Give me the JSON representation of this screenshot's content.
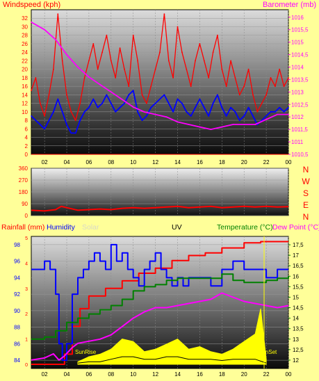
{
  "colors": {
    "background": "#ffff99",
    "wind_speed": "#ff0000",
    "wind_avg": "#0000ff",
    "barometer": "#ff00ff",
    "wind_dir": "#ff0000",
    "rain": "#ff0000",
    "humidity": "#0000ff",
    "solar": "#ffff00",
    "uv": "#000000",
    "temperature": "#008000",
    "dew_point": "#ff00ff",
    "sunset": "#ffff00"
  },
  "chart_data": [
    {
      "type": "line",
      "title": "",
      "xlabel": "",
      "left_label": "Windspeed (kph)",
      "right_label": "Barometer (mb)",
      "subtitle": "",
      "x_ticks": [
        "02",
        "04",
        "06",
        "08",
        "10",
        "12",
        "14",
        "16",
        "18",
        "20",
        "22",
        "00"
      ],
      "x_range": [
        0.8,
        24.0
      ],
      "ylim_left": [
        0,
        34
      ],
      "ylim_right": [
        1010.5,
        1016.3
      ],
      "y_ticks_left": [
        "0",
        "2",
        "4",
        "6",
        "8",
        "10",
        "12",
        "14",
        "16",
        "18",
        "20",
        "22",
        "24",
        "26",
        "28",
        "30",
        "32"
      ],
      "y_ticks_right": [
        "1010,5",
        "1011",
        "1011,5",
        "1012",
        "1012,5",
        "1013",
        "1013,5",
        "1014",
        "1014,5",
        "1015",
        "1015,5",
        "1016"
      ],
      "grid": true,
      "series": [
        {
          "axis": "left",
          "x": [
            0.8,
            1.2,
            1.6,
            2.0,
            2.4,
            2.8,
            3.2,
            3.6,
            4.0,
            4.4,
            4.8,
            5.2,
            5.6,
            6.0,
            6.4,
            6.8,
            7.2,
            7.6,
            8.0,
            8.4,
            8.8,
            9.2,
            9.6,
            10.0,
            10.4,
            10.8,
            11.2,
            11.6,
            12.0,
            12.4,
            12.8,
            13.2,
            13.6,
            14.0,
            14.4,
            14.8,
            15.2,
            15.6,
            16.0,
            16.4,
            16.8,
            17.2,
            17.6,
            18.0,
            18.4,
            18.8,
            19.2,
            19.6,
            20.0,
            20.4,
            20.8,
            21.2,
            21.6,
            22.0,
            22.4,
            22.8,
            23.2,
            23.6,
            24.0
          ],
          "values": [
            15,
            18,
            12,
            9,
            14,
            20,
            33,
            22,
            14,
            10,
            8,
            12,
            18,
            22,
            26,
            20,
            24,
            28,
            22,
            18,
            25,
            20,
            16,
            28,
            22,
            14,
            12,
            16,
            20,
            24,
            33,
            22,
            18,
            30,
            24,
            20,
            16,
            22,
            26,
            22,
            18,
            24,
            28,
            20,
            16,
            22,
            18,
            14,
            16,
            20,
            14,
            10,
            12,
            14,
            18,
            16,
            20,
            16,
            18
          ]
        },
        {
          "axis": "left",
          "x": [
            0.8,
            1.2,
            1.6,
            2.0,
            2.4,
            2.8,
            3.2,
            3.6,
            4.0,
            4.4,
            4.8,
            5.2,
            5.6,
            6.0,
            6.4,
            6.8,
            7.2,
            7.6,
            8.0,
            8.4,
            8.8,
            9.2,
            9.6,
            10.0,
            10.4,
            10.8,
            11.2,
            11.6,
            12.0,
            12.4,
            12.8,
            13.2,
            13.6,
            14.0,
            14.4,
            14.8,
            15.2,
            15.6,
            16.0,
            16.4,
            16.8,
            17.2,
            17.6,
            18.0,
            18.4,
            18.8,
            19.2,
            19.6,
            20.0,
            20.4,
            20.8,
            21.2,
            21.6,
            22.0,
            22.4,
            22.8,
            23.2,
            23.6,
            24.0
          ],
          "values": [
            9,
            8,
            7,
            6,
            8,
            10,
            13,
            10,
            7,
            5,
            5,
            8,
            10,
            11,
            13,
            11,
            12,
            14,
            12,
            10,
            11,
            12,
            14,
            15,
            10,
            8,
            9,
            11,
            12,
            13,
            14,
            12,
            10,
            13,
            12,
            10,
            9,
            11,
            13,
            11,
            9,
            12,
            14,
            11,
            9,
            11,
            10,
            8,
            9,
            11,
            9,
            7,
            8,
            9,
            10,
            10,
            11,
            10,
            11
          ]
        },
        {
          "axis": "right",
          "x": [
            0.8,
            2.0,
            3.0,
            4.0,
            5.0,
            6.0,
            7.0,
            8.0,
            9.0,
            10.0,
            11.0,
            12.0,
            13.0,
            14.0,
            15.0,
            16.0,
            17.0,
            18.0,
            19.0,
            20.0,
            21.0,
            22.0,
            23.0,
            24.0
          ],
          "values": [
            1015.8,
            1015.5,
            1015.1,
            1014.5,
            1014.0,
            1013.6,
            1013.3,
            1013.0,
            1012.7,
            1012.4,
            1012.2,
            1012.1,
            1012.0,
            1011.8,
            1011.7,
            1011.6,
            1011.5,
            1011.6,
            1011.7,
            1011.7,
            1011.7,
            1011.9,
            1012.1,
            1012.1
          ]
        }
      ]
    },
    {
      "type": "line",
      "title": "",
      "xlabel": "",
      "ylim": [
        0,
        360
      ],
      "y_ticks": [
        "0",
        "90",
        "180",
        "270",
        "360"
      ],
      "right_labels": [
        "N",
        "W",
        "S",
        "E",
        "N"
      ],
      "grid": true,
      "series": [
        {
          "x": [
            0.8,
            2.0,
            3.0,
            3.5,
            4.0,
            5.0,
            6.0,
            7.0,
            8.0,
            9.0,
            10.0,
            11.0,
            12.0,
            13.0,
            14.0,
            15.0,
            16.0,
            17.0,
            18.0,
            19.0,
            20.0,
            21.0,
            22.0,
            23.0,
            24.0
          ],
          "values": [
            40,
            35,
            45,
            70,
            60,
            40,
            45,
            50,
            45,
            55,
            60,
            55,
            60,
            65,
            70,
            60,
            65,
            70,
            60,
            65,
            70,
            65,
            70,
            65,
            68
          ]
        }
      ]
    },
    {
      "type": "line",
      "title": "",
      "xlabel": "",
      "header_labels": {
        "rain": "Rainfall (mm)",
        "humidity": "Humidity",
        "solar": "Solar",
        "uv": "UV",
        "temperature": "Temperature (°C)",
        "dew_point": "Dew Point (°C)"
      },
      "annotations": [
        "SunRise",
        "SunSet"
      ],
      "x_ticks": [
        "02",
        "04",
        "06",
        "08",
        "10",
        "12",
        "14",
        "16",
        "18",
        "20",
        "22",
        "00"
      ],
      "x_range": [
        0.8,
        24.0
      ],
      "ylim_humidity": [
        83,
        99
      ],
      "y_ticks_humidity": [
        "84",
        "86",
        "88",
        "90",
        "92",
        "94",
        "96",
        "98"
      ],
      "ylim_temperature": [
        11.6,
        17.9
      ],
      "y_ticks_temperature": [
        "12",
        "12,5",
        "13",
        "13,5",
        "14",
        "14,5",
        "15",
        "15,5",
        "16",
        "16,5",
        "17",
        "17,5"
      ],
      "rain_tick_labels": [
        "0",
        "1",
        "2",
        "3",
        "4",
        "5"
      ],
      "ylim_rain": [
        0,
        5
      ],
      "grid": true,
      "series": [
        {
          "name": "Rainfall (mm)",
          "axis": "rain",
          "x": [
            0.8,
            3.2,
            3.8,
            4.5,
            5.2,
            6.0,
            7.5,
            9.0,
            10.5,
            12.0,
            13.5,
            15.0,
            16.5,
            18.0,
            19.0,
            20.0,
            21.5,
            22.0,
            23.0,
            24.0
          ],
          "values": [
            0,
            0,
            0.4,
            1.5,
            2.2,
            2.7,
            3.0,
            3.3,
            3.6,
            3.8,
            4.1,
            4.3,
            4.4,
            4.6,
            4.6,
            4.8,
            4.85,
            4.85,
            4.85,
            4.85
          ]
        },
        {
          "name": "Humidity",
          "axis": "humidity",
          "x": [
            0.8,
            1.5,
            2.0,
            2.5,
            3.0,
            3.3,
            3.6,
            4.0,
            4.5,
            5.0,
            5.5,
            6.0,
            6.5,
            7.0,
            7.5,
            8.0,
            8.5,
            9.0,
            9.5,
            10.0,
            10.5,
            11.0,
            11.5,
            12.0,
            12.5,
            13.0,
            13.5,
            14.0,
            14.5,
            15.0,
            16.0,
            17.0,
            18.0,
            19.0,
            20.0,
            21.0,
            22.0,
            23.0,
            24.0
          ],
          "values": [
            95,
            95,
            96,
            95,
            92,
            86,
            84,
            86,
            92,
            94,
            95,
            96,
            97,
            96,
            95,
            98,
            96,
            97,
            95,
            94,
            93,
            95,
            96,
            97,
            95,
            94,
            93,
            94,
            93,
            94,
            94,
            93,
            95,
            96,
            95,
            95,
            94,
            95,
            95
          ]
        },
        {
          "name": "Temperature (°C)",
          "axis": "temperature",
          "x": [
            0.8,
            2.0,
            3.0,
            4.0,
            5.0,
            6.0,
            7.0,
            8.0,
            9.0,
            10.0,
            11.0,
            12.0,
            13.0,
            14.0,
            15.0,
            16.0,
            17.0,
            18.0,
            19.0,
            20.0,
            21.0,
            22.0,
            23.0,
            24.0
          ],
          "values": [
            13.0,
            13.1,
            13.4,
            13.8,
            14.0,
            14.2,
            14.4,
            14.6,
            14.9,
            15.3,
            15.5,
            15.6,
            15.8,
            15.9,
            15.9,
            15.9,
            15.9,
            16.1,
            15.8,
            15.7,
            15.7,
            15.8,
            15.9,
            16.0
          ]
        },
        {
          "name": "Dew Point (°C)",
          "axis": "temperature",
          "x": [
            0.8,
            2.0,
            2.8,
            3.3,
            3.8,
            4.5,
            5.0,
            6.0,
            7.0,
            8.0,
            9.0,
            10.0,
            11.0,
            12.0,
            13.0,
            14.0,
            15.0,
            16.0,
            17.0,
            18.0,
            19.0,
            20.0,
            21.0,
            22.0,
            23.0,
            24.0
          ],
          "values": [
            12.0,
            12.1,
            12.3,
            12.0,
            12.2,
            12.6,
            12.8,
            12.9,
            13.0,
            13.2,
            13.6,
            14.0,
            14.3,
            14.5,
            14.5,
            14.6,
            14.7,
            14.8,
            14.9,
            15.2,
            15.0,
            14.8,
            14.7,
            14.6,
            14.5,
            14.6
          ]
        },
        {
          "name": "Solar",
          "axis": "rain",
          "x": [
            5.0,
            6.0,
            7.0,
            8.0,
            9.0,
            10.0,
            11.0,
            12.0,
            13.0,
            14.0,
            15.0,
            16.0,
            17.0,
            18.0,
            19.0,
            20.0,
            21.0,
            21.5,
            22.0
          ],
          "values": [
            0.1,
            0.3,
            0.4,
            0.6,
            1.0,
            0.9,
            0.5,
            0.6,
            0.8,
            1.0,
            0.6,
            0.7,
            0.5,
            0.4,
            0.6,
            0.9,
            1.2,
            2.2,
            0.2
          ]
        },
        {
          "name": "UV",
          "axis": "rain",
          "x": [
            5.0,
            6.0,
            7.0,
            8.0,
            9.0,
            10.0,
            11.0,
            12.0,
            13.0,
            14.0,
            15.0,
            16.0,
            17.0,
            18.0,
            19.0,
            20.0,
            21.0,
            22.0
          ],
          "values": [
            0.05,
            0.1,
            0.1,
            0.2,
            0.3,
            0.3,
            0.2,
            0.2,
            0.3,
            0.3,
            0.2,
            0.2,
            0.2,
            0.15,
            0.2,
            0.2,
            0.2,
            0.05
          ]
        }
      ]
    }
  ]
}
